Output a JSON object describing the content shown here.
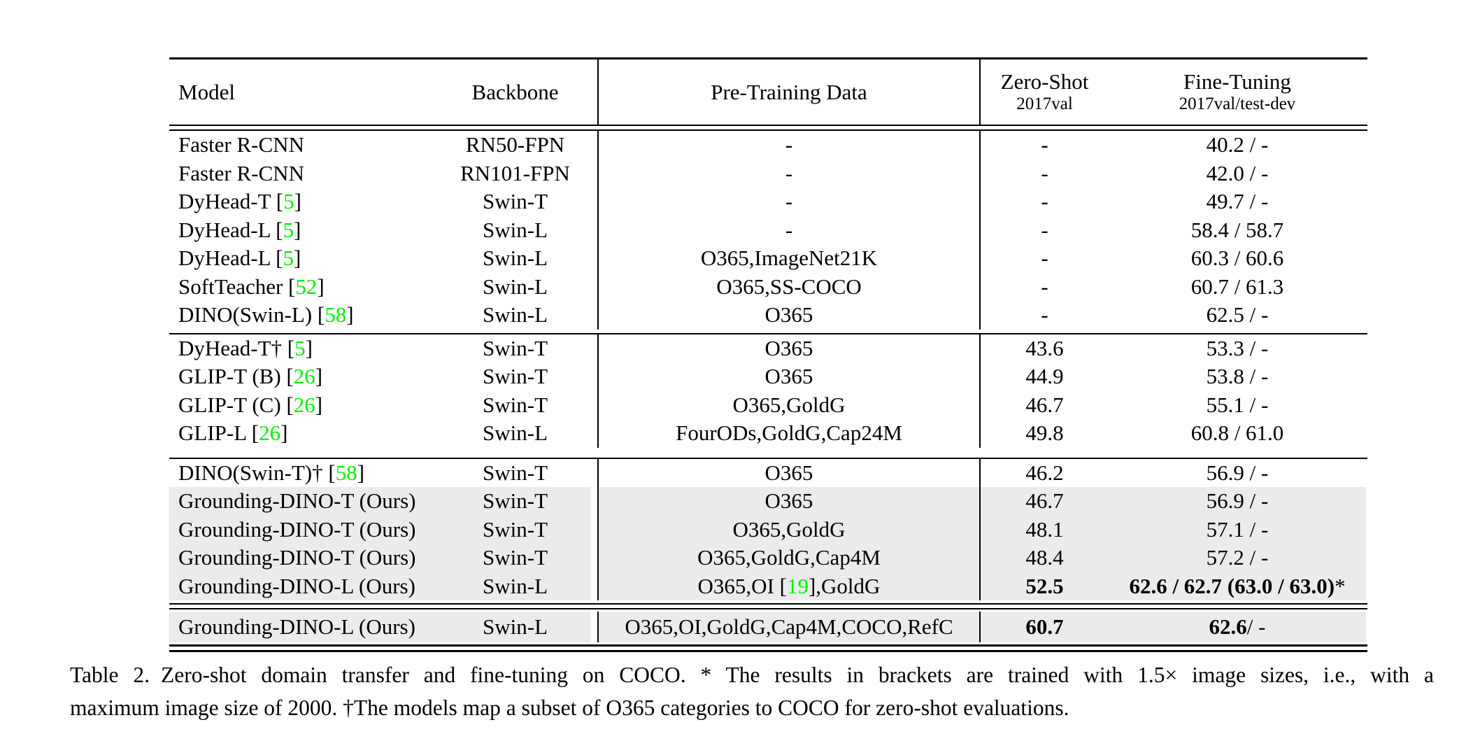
{
  "colors": {
    "citation_green": "#00f000",
    "row_highlight": "#ebebeb",
    "text": "#000000",
    "background": "#ffffff"
  },
  "table": {
    "header": {
      "model": "Model",
      "backbone": "Backbone",
      "pretrain": "Pre-Training Data",
      "zeroshot_title": "Zero-Shot",
      "zeroshot_sub": "2017val",
      "finetune_title": "Fine-Tuning",
      "finetune_sub": "2017val/test-dev"
    },
    "sections": [
      {
        "rows": [
          {
            "m0": "Faster R-CNN",
            "mr": "",
            "m1": "",
            "b": "RN50-FPN",
            "p0": "-",
            "pr": "",
            "p1": "",
            "z": "-",
            "f0": "",
            "f1": "40.2 / -"
          },
          {
            "m0": "Faster R-CNN",
            "mr": "",
            "m1": "",
            "b": "RN101-FPN",
            "p0": "-",
            "pr": "",
            "p1": "",
            "z": "-",
            "f0": "",
            "f1": "42.0 / -"
          },
          {
            "m0": "DyHead-T [",
            "mr": "5",
            "m1": "]",
            "b": "Swin-T",
            "p0": "-",
            "pr": "",
            "p1": "",
            "z": "-",
            "f0": "",
            "f1": "49.7 / -"
          },
          {
            "m0": "DyHead-L [",
            "mr": "5",
            "m1": "]",
            "b": "Swin-L",
            "p0": "-",
            "pr": "",
            "p1": "",
            "z": "-",
            "f0": "",
            "f1": "58.4 / 58.7"
          },
          {
            "m0": "DyHead-L [",
            "mr": "5",
            "m1": "]",
            "b": "Swin-L",
            "p0": "O365,ImageNet21K",
            "pr": "",
            "p1": "",
            "z": "-",
            "f0": "",
            "f1": "60.3 / 60.6"
          },
          {
            "m0": "SoftTeacher [",
            "mr": "52",
            "m1": "]",
            "b": "Swin-L",
            "p0": "O365,SS-COCO",
            "pr": "",
            "p1": "",
            "z": "-",
            "f0": "",
            "f1": "60.7 / 61.3"
          },
          {
            "m0": "DINO(Swin-L) [",
            "mr": "58",
            "m1": "]",
            "b": "Swin-L",
            "p0": "O365",
            "pr": "",
            "p1": "",
            "z": "-",
            "f0": "",
            "f1": "62.5 / -"
          }
        ]
      },
      {
        "rows": [
          {
            "m0": "DyHead-T† [",
            "mr": "5",
            "m1": "]",
            "b": "Swin-T",
            "p0": "O365",
            "pr": "",
            "p1": "",
            "z": "43.6",
            "f0": "",
            "f1": "53.3 / -"
          },
          {
            "m0": "GLIP-T (B) [",
            "mr": "26",
            "m1": "]",
            "b": "Swin-T",
            "p0": "O365",
            "pr": "",
            "p1": "",
            "z": "44.9",
            "f0": "",
            "f1": "53.8 / -"
          },
          {
            "m0": "GLIP-T (C) [",
            "mr": "26",
            "m1": "]",
            "b": "Swin-T",
            "p0": "O365,GoldG",
            "pr": "",
            "p1": "",
            "z": "46.7",
            "f0": "",
            "f1": "55.1 / -"
          },
          {
            "m0": "GLIP-L [",
            "mr": "26",
            "m1": "]",
            "b": "Swin-L",
            "p0": "FourODs,GoldG,Cap24M",
            "pr": "",
            "p1": "",
            "z": "49.8",
            "f0": "",
            "f1": "60.8 / 61.0"
          }
        ]
      },
      {
        "rows": [
          {
            "m0": "DINO(Swin-T)† [",
            "mr": "58",
            "m1": "]",
            "b": "Swin-T",
            "p0": "O365",
            "pr": "",
            "p1": "",
            "z": "46.2",
            "f0": "",
            "f1": "56.9 / -"
          },
          {
            "m0": "Grounding-DINO-T (Ours)",
            "mr": "",
            "m1": "",
            "b": "Swin-T",
            "p0": "O365",
            "pr": "",
            "p1": "",
            "z": "46.7",
            "f0": "",
            "f1": "56.9 / -"
          },
          {
            "m0": "Grounding-DINO-T (Ours)",
            "mr": "",
            "m1": "",
            "b": "Swin-T",
            "p0": "O365,GoldG",
            "pr": "",
            "p1": "",
            "z": "48.1",
            "f0": "",
            "f1": "57.1 / -"
          },
          {
            "m0": "Grounding-DINO-T (Ours)",
            "mr": "",
            "m1": "",
            "b": "Swin-T",
            "p0": "O365,GoldG,Cap4M",
            "pr": "",
            "p1": "",
            "z": "48.4",
            "f0": "",
            "f1": "57.2 / -"
          },
          {
            "m0": "Grounding-DINO-L (Ours)",
            "mr": "",
            "m1": "",
            "b": "Swin-L",
            "p0": "O365,OI [",
            "pr": "19",
            "p1": "],GoldG",
            "z": "52.5",
            "f0": "62.6 / 62.7 (63.0 / 63.0)",
            "f1": "*"
          }
        ]
      },
      {
        "rows": [
          {
            "m0": "Grounding-DINO-L (Ours)",
            "mr": "",
            "m1": "",
            "b": "Swin-L",
            "p0": "O365,OI,GoldG,Cap4M,COCO,RefC",
            "pr": "",
            "p1": "",
            "z": "60.7",
            "f0": "62.6",
            "f1": " / -"
          }
        ]
      }
    ]
  },
  "caption": {
    "label": "Table 2.",
    "line1": "Zero-shot domain transfer and fine-tuning on COCO. * The results in brackets are trained with 1.5× image sizes, i.e., with a",
    "line2": "maximum image size of 2000. †The models map a subset of O365 categories to COCO for zero-shot evaluations."
  }
}
